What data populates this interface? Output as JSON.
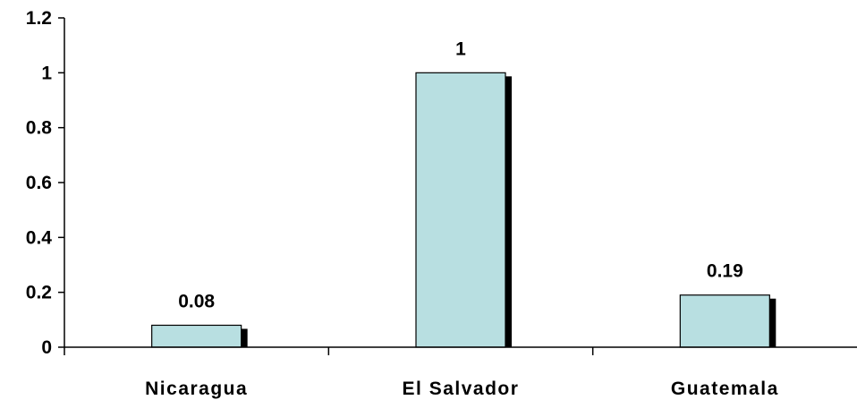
{
  "chart_data": {
    "type": "bar",
    "categories": [
      "Nicaragua",
      "El Salvador",
      "Guatemala"
    ],
    "values": [
      0.08,
      1,
      0.19
    ],
    "data_labels": [
      "0.08",
      "1",
      "0.19"
    ],
    "title": "",
    "xlabel": "",
    "ylabel": "",
    "ylim": [
      0,
      1.2
    ],
    "yticks": [
      0,
      0.2,
      0.4,
      0.6,
      0.8,
      1,
      1.2
    ],
    "ytick_labels": [
      "0",
      "0.2",
      "0.4",
      "0.6",
      "0.8",
      "1",
      "1.2"
    ],
    "grid": false,
    "legend": "none",
    "colors": {
      "bar_fill": "#b8dfe1",
      "bar_stroke": "#000000",
      "bar_shadow": "#000000"
    }
  }
}
